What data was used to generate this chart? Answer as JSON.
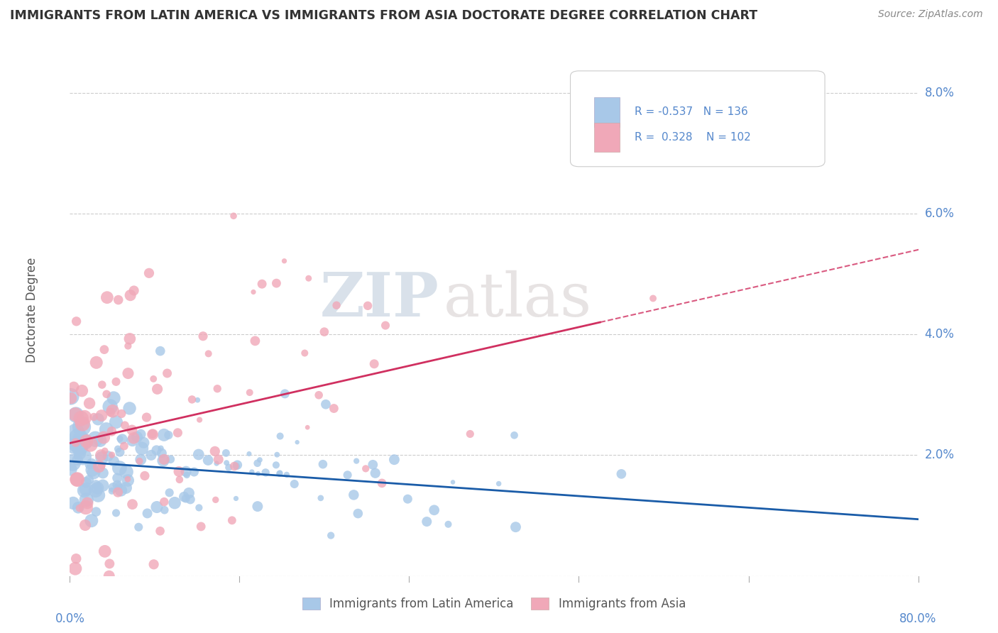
{
  "title": "IMMIGRANTS FROM LATIN AMERICA VS IMMIGRANTS FROM ASIA DOCTORATE DEGREE CORRELATION CHART",
  "source": "Source: ZipAtlas.com",
  "ylabel": "Doctorate Degree",
  "xlim": [
    0.0,
    0.8
  ],
  "ylim": [
    0.0,
    0.088
  ],
  "yticks": [
    0.0,
    0.02,
    0.04,
    0.06,
    0.08
  ],
  "ytick_labels": [
    "",
    "2.0%",
    "4.0%",
    "6.0%",
    "8.0%"
  ],
  "series1_color": "#a8c8e8",
  "series2_color": "#f0a8b8",
  "line1_color": "#1a5ca8",
  "line2_color": "#d03060",
  "R1": -0.537,
  "N1": 136,
  "R2": 0.328,
  "N2": 102,
  "legend_label1": "Immigrants from Latin America",
  "legend_label2": "Immigrants from Asia",
  "watermark_zip": "ZIP",
  "watermark_atlas": "atlas",
  "background_color": "#ffffff",
  "grid_color": "#cccccc",
  "title_color": "#333333",
  "axis_label_color": "#5588cc",
  "intercept1": 0.019,
  "slope1": -0.012,
  "intercept2": 0.022,
  "slope2": 0.04,
  "seed1": 42,
  "seed2": 77
}
